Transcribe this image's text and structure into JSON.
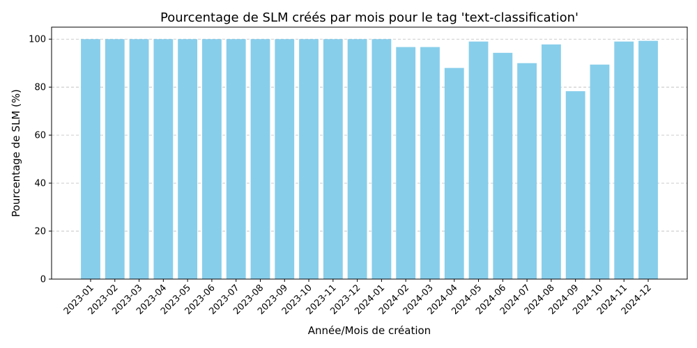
{
  "chart_data": {
    "type": "bar",
    "title": "Pourcentage de SLM créés par mois pour le tag 'text-classification'",
    "xlabel": "Année/Mois de création",
    "ylabel": "Pourcentage de SLM (%)",
    "ylim": [
      0,
      105
    ],
    "yticks": [
      0,
      20,
      40,
      60,
      80,
      100
    ],
    "grid": "y-dashed",
    "bar_color": "#87CEEB",
    "categories": [
      "2023-01",
      "2023-02",
      "2023-03",
      "2023-04",
      "2023-05",
      "2023-06",
      "2023-07",
      "2023-08",
      "2023-09",
      "2023-10",
      "2023-11",
      "2023-12",
      "2024-01",
      "2024-02",
      "2024-03",
      "2024-04",
      "2024-05",
      "2024-06",
      "2024-07",
      "2024-08",
      "2024-09",
      "2024-10",
      "2024-11",
      "2024-12"
    ],
    "values": [
      100,
      100,
      100,
      100,
      100,
      100,
      100,
      100,
      100,
      100,
      100,
      100,
      100,
      96.7,
      96.7,
      88.0,
      99.0,
      94.3,
      90.0,
      97.8,
      78.3,
      89.4,
      99.0,
      99.3
    ]
  }
}
